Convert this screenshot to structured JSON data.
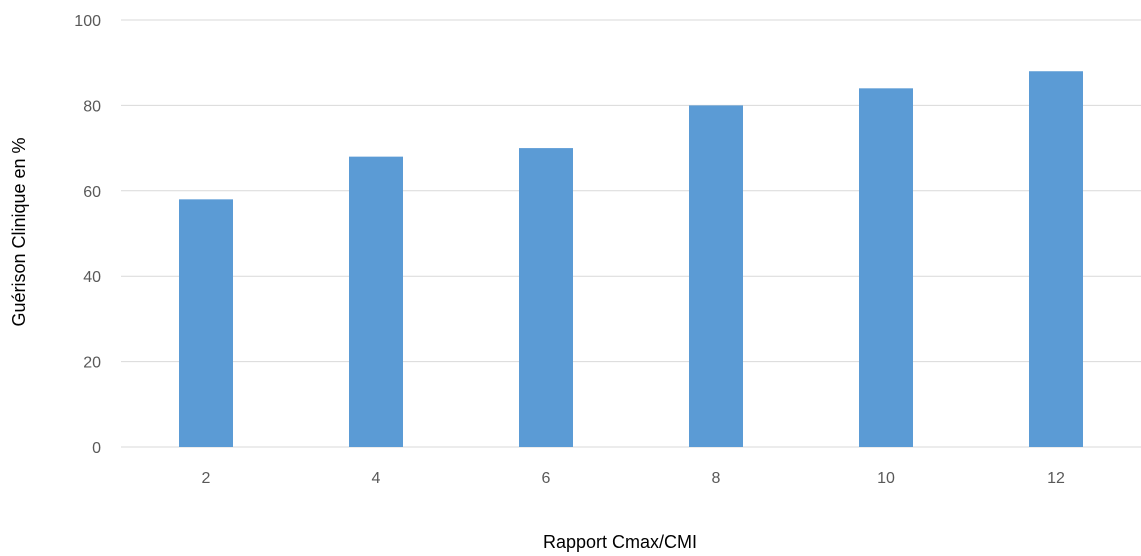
{
  "chart_data": {
    "type": "bar",
    "title": "",
    "categories": [
      "2",
      "4",
      "6",
      "8",
      "10",
      "12"
    ],
    "values": [
      58,
      68,
      70,
      80,
      84,
      88
    ],
    "xlabel": "Rapport Cmax/CMI",
    "ylabel": "Guérison Clinique en %",
    "ylim": [
      0,
      100
    ],
    "yticks": [
      "0",
      "20",
      "40",
      "60",
      "80",
      "100"
    ],
    "grid": true,
    "legend": "none",
    "bar_color": "#5b9bd5"
  }
}
